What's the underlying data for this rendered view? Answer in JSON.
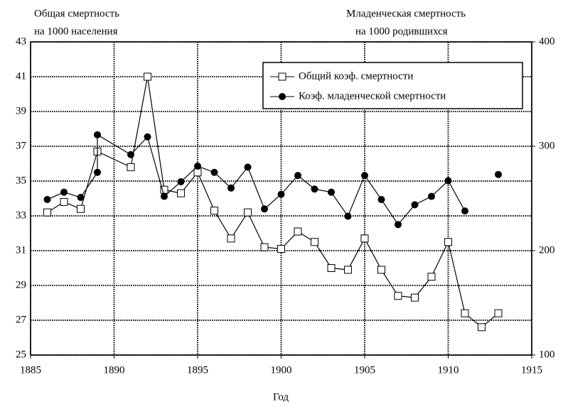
{
  "chart_data": {
    "type": "line",
    "ylabel": [
      "Общая смертность",
      "на 1000 населения"
    ],
    "y2label": [
      "Младенческая смертность",
      "на 1000 родившихся"
    ],
    "xlabel": "Год",
    "xlim": [
      1885,
      1915
    ],
    "xticks": [
      1885,
      1890,
      1895,
      1900,
      1905,
      1910,
      1915
    ],
    "ylim": [
      25,
      43
    ],
    "yticks": [
      25,
      27,
      29,
      31,
      33,
      35,
      37,
      39,
      41,
      43
    ],
    "y2lim": [
      100,
      400
    ],
    "y2ticks": [
      100,
      200,
      300,
      400
    ],
    "grid": true,
    "legend": "upper right",
    "series": [
      {
        "name": "Общий коэф. смертности",
        "color": "#000000",
        "marker": "square",
        "x": [
          1886,
          1887,
          1888,
          1889,
          1891,
          1892,
          1893,
          1894,
          1895,
          1896,
          1897,
          1898,
          1899,
          1900,
          1901,
          1902,
          1903,
          1904,
          1905,
          1906,
          1907,
          1908,
          1909,
          1910,
          1911,
          1912,
          1913
        ],
        "values": [
          33.2,
          33.8,
          33.4,
          36.7,
          35.8,
          41.0,
          34.5,
          34.3,
          35.5,
          33.3,
          31.7,
          33.2,
          31.2,
          31.1,
          32.1,
          31.5,
          30.0,
          29.9,
          31.7,
          29.9,
          28.4,
          28.3,
          29.5,
          31.5,
          27.4,
          26.6,
          27.4
        ]
      },
      {
        "name": "Коэф. младенческой смертности",
        "color": "#000000",
        "marker": "circle",
        "axis": "y2",
        "x": [
          1886,
          1887,
          1888,
          1889,
          1889,
          1891,
          1892,
          1893,
          1894,
          1895,
          1896,
          1897,
          1898,
          1899,
          1900,
          1901,
          1902,
          1903,
          1904,
          1905,
          1906,
          1907,
          1908,
          1909,
          1910,
          1911,
          1912,
          1913
        ],
        "values": [
          249,
          256,
          251,
          275,
          311,
          292,
          309,
          252,
          266,
          281,
          275,
          260,
          280,
          240,
          254,
          272,
          259,
          256,
          233,
          272,
          249,
          225,
          244,
          252,
          267,
          238,
          null,
          273
        ]
      }
    ]
  }
}
